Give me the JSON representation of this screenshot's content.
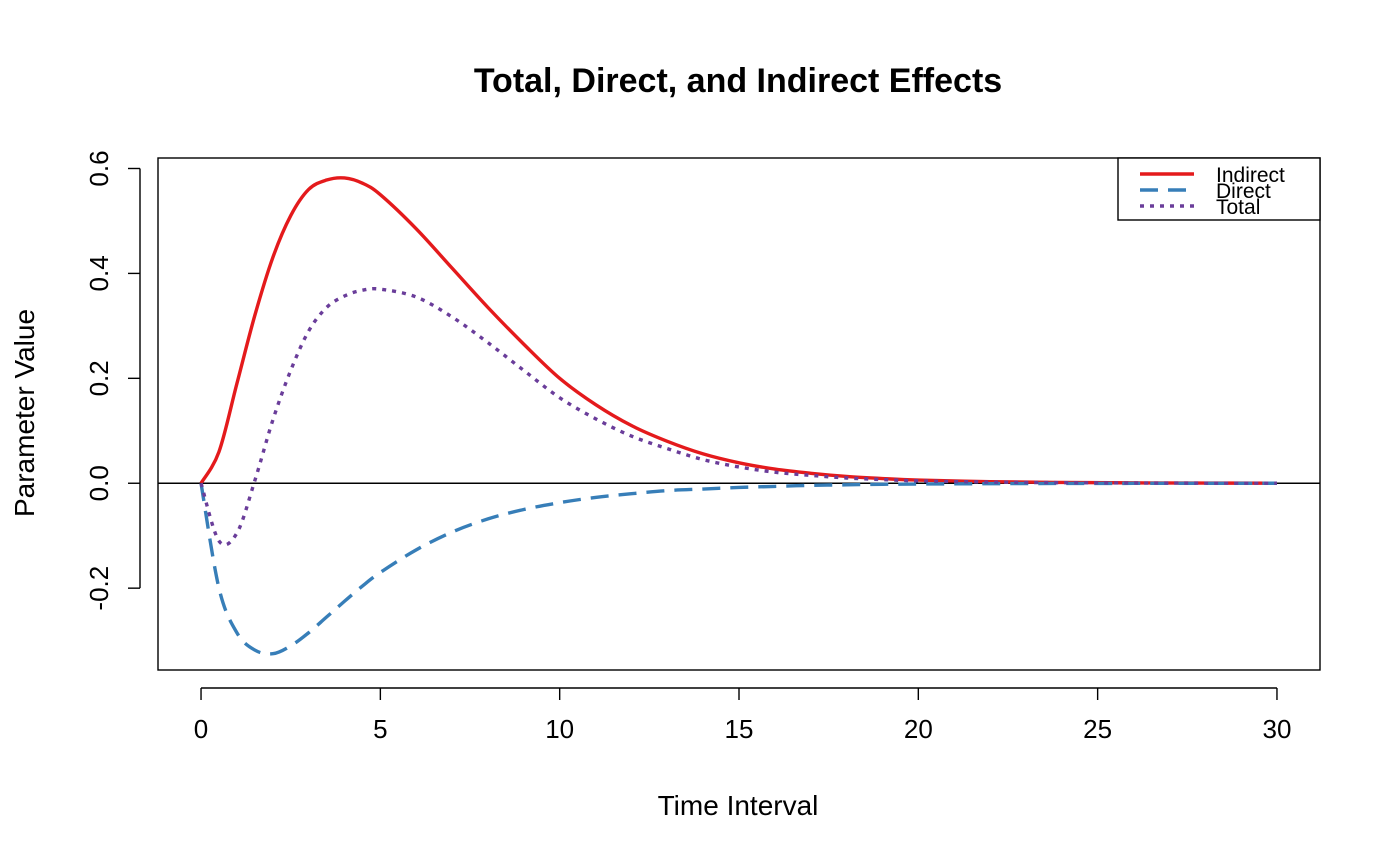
{
  "chart_data": {
    "type": "line",
    "title": "Total, Direct, and Indirect Effects",
    "xlabel": "Time Interval",
    "ylabel": "Parameter Value",
    "xlim": [
      -1.2,
      31.2
    ],
    "ylim": [
      -0.356,
      0.62
    ],
    "xticks": [
      0,
      5,
      10,
      15,
      20,
      25,
      30
    ],
    "yticks": [
      -0.2,
      0.0,
      0.2,
      0.4,
      0.6
    ],
    "xtick_labels": [
      "0",
      "5",
      "10",
      "15",
      "20",
      "25",
      "30"
    ],
    "ytick_labels": [
      "-0.2",
      "0.0",
      "0.2",
      "0.4",
      "0.6"
    ],
    "hline": 0,
    "grid": false,
    "legend_position": "top-right",
    "x": [
      0,
      0.5,
      1,
      1.5,
      2,
      2.5,
      3,
      3.5,
      4,
      4.5,
      5,
      6,
      7,
      8,
      9,
      10,
      11,
      12,
      13,
      14,
      15,
      16,
      17,
      18,
      19,
      20,
      22,
      24,
      26,
      28,
      30
    ],
    "series": [
      {
        "name": "Indirect",
        "color": "#e41a1c",
        "dash": "solid",
        "values": [
          0,
          0.06,
          0.19,
          0.32,
          0.43,
          0.51,
          0.56,
          0.578,
          0.582,
          0.572,
          0.55,
          0.485,
          0.41,
          0.335,
          0.265,
          0.2,
          0.15,
          0.11,
          0.08,
          0.056,
          0.039,
          0.027,
          0.019,
          0.013,
          0.009,
          0.006,
          0.003,
          0.0015,
          0.0007,
          0.0003,
          0.0001
        ]
      },
      {
        "name": "Direct",
        "color": "#377eb8",
        "dash": "dashed",
        "values": [
          0,
          -0.2,
          -0.285,
          -0.318,
          -0.325,
          -0.31,
          -0.285,
          -0.255,
          -0.225,
          -0.196,
          -0.17,
          -0.127,
          -0.093,
          -0.068,
          -0.05,
          -0.037,
          -0.027,
          -0.02,
          -0.014,
          -0.011,
          -0.008,
          -0.006,
          -0.004,
          -0.003,
          -0.002,
          -0.0015,
          -0.0008,
          -0.0004,
          -0.0002,
          -0.0001,
          0
        ]
      },
      {
        "name": "Total",
        "color": "#6a3d9a",
        "dash": "dotted",
        "values": [
          0,
          -0.11,
          -0.095,
          0.005,
          0.12,
          0.215,
          0.29,
          0.335,
          0.357,
          0.368,
          0.37,
          0.355,
          0.317,
          0.268,
          0.215,
          0.163,
          0.123,
          0.09,
          0.066,
          0.045,
          0.031,
          0.021,
          0.015,
          0.01,
          0.007,
          0.0045,
          0.0022,
          0.0011,
          0.0005,
          0.0002,
          0.0001
        ]
      }
    ]
  }
}
